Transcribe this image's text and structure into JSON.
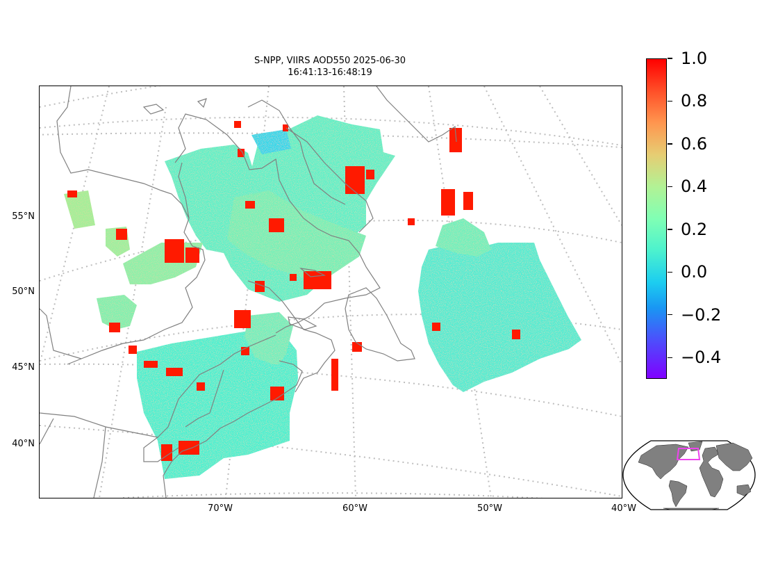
{
  "title": {
    "line1": "S-NPP, VIIRS AOD550 2025-06-30",
    "line2": "16:41:13-16:48:19"
  },
  "map": {
    "lat_labels": [
      "55°N",
      "50°N",
      "45°N",
      "40°N"
    ],
    "lon_labels": [
      "70°W",
      "60°W",
      "50°W",
      "40°W"
    ],
    "coastline_color": "#808080",
    "graticule_color": "#bdbdbd",
    "field_color": "#4ff0d0",
    "hotspot_color": "#ff1a00"
  },
  "colorbar": {
    "min": -0.5,
    "max": 1.0,
    "ticks": [
      "1.0",
      "0.8",
      "0.6",
      "0.4",
      "0.2",
      "0.0",
      "−0.2",
      "−0.4"
    ],
    "colormap": "rainbow"
  },
  "inset": {
    "land_color": "#808080",
    "box_color": "#ee44ee"
  }
}
